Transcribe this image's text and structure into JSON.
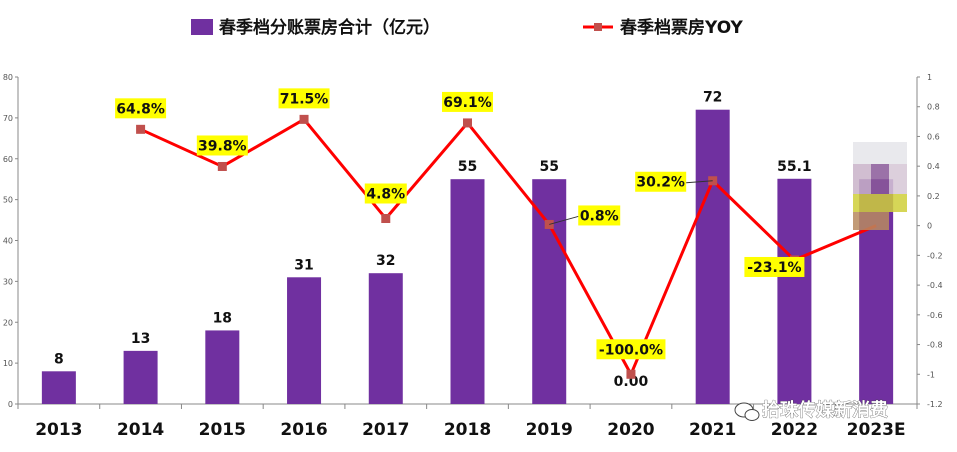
{
  "chart_data": {
    "type": "bar",
    "categories": [
      "2013",
      "2014",
      "2015",
      "2016",
      "2017",
      "2018",
      "2019",
      "2020",
      "2021",
      "2022",
      "2023E"
    ],
    "series": [
      {
        "name": "春季档分账票房合计（亿元）",
        "kind": "bar",
        "axis": "left",
        "values": [
          8,
          13,
          18,
          31,
          32,
          55,
          55,
          0.0,
          72,
          55.1,
          null
        ],
        "labels": [
          "8",
          "13",
          "18",
          "31",
          "32",
          "55",
          "55",
          "0.00",
          "72",
          "55.1",
          ""
        ],
        "color": "#7030A0"
      },
      {
        "name": "春季档票房YOY",
        "kind": "line",
        "axis": "right",
        "values": [
          null,
          0.648,
          0.398,
          0.715,
          0.048,
          0.691,
          0.008,
          -1.0,
          0.302,
          -0.231,
          0.0
        ],
        "labels": [
          "",
          "64.8%",
          "39.8%",
          "71.5%",
          "4.8%",
          "69.1%",
          "0.8%",
          "-100.0%",
          "30.2%",
          "-23.1%",
          ""
        ],
        "color": "#FF0000",
        "marker_color": "#C0504D"
      }
    ],
    "bar_2023E_value": 55,
    "yaxis_left": {
      "ticks": [
        "0",
        "10",
        "20",
        "30",
        "40",
        "50",
        "60",
        "70",
        "80"
      ],
      "ylim": [
        0,
        80
      ]
    },
    "yaxis_right": {
      "ticks": [
        "1",
        "0.8",
        "0.6",
        "0.4",
        "0.2",
        "0",
        "-0.2",
        "-0.4",
        "-0.6",
        "-0.8",
        "-1",
        "-1.2"
      ],
      "ylim": [
        -1.2,
        1
      ]
    },
    "legend": "top-center",
    "grid": false,
    "label_highlight_color": "#FFFF00"
  },
  "watermark": {
    "text": "拾珠传媒新消费"
  }
}
